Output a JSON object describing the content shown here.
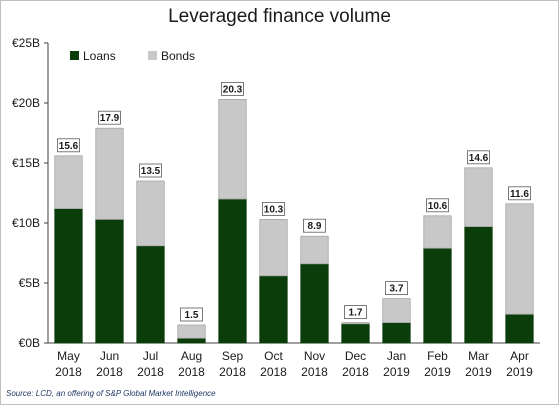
{
  "chart_data": {
    "type": "bar",
    "stacked": true,
    "title": "Leveraged finance volume",
    "source": "Source: LCD, an offering of S&P Global Market Intelligence",
    "categories": [
      [
        "May",
        "2018"
      ],
      [
        "Jun",
        "2018"
      ],
      [
        "Jul",
        "2018"
      ],
      [
        "Aug",
        "2018"
      ],
      [
        "Sep",
        "2018"
      ],
      [
        "Oct",
        "2018"
      ],
      [
        "Nov",
        "2018"
      ],
      [
        "Dec",
        "2018"
      ],
      [
        "Jan",
        "2019"
      ],
      [
        "Feb",
        "2019"
      ],
      [
        "Mar",
        "2019"
      ],
      [
        "Apr",
        "2019"
      ]
    ],
    "series": [
      {
        "name": "Loans",
        "color": "#0b3d0b",
        "values": [
          11.2,
          10.3,
          8.1,
          0.4,
          12.0,
          5.6,
          6.6,
          1.6,
          1.7,
          7.9,
          9.7,
          2.4
        ]
      },
      {
        "name": "Bonds",
        "color": "#c8c8c8",
        "values": [
          4.4,
          7.6,
          5.4,
          1.1,
          8.3,
          4.7,
          2.3,
          0.1,
          2.0,
          2.7,
          4.9,
          9.2
        ]
      }
    ],
    "totals": [
      "15.6",
      "17.9",
      "13.5",
      "1.5",
      "20.3",
      "10.3",
      "8.9",
      "1.7",
      "3.7",
      "10.6",
      "14.6",
      "11.6"
    ],
    "ylim": [
      0,
      25
    ],
    "yticks": [
      {
        "value": 0,
        "label": "€0B"
      },
      {
        "value": 5,
        "label": "€5B"
      },
      {
        "value": 10,
        "label": "€10B"
      },
      {
        "value": 15,
        "label": "€15B"
      },
      {
        "value": 20,
        "label": "€20B"
      },
      {
        "value": 25,
        "label": "€25B"
      }
    ],
    "legend_position": "top-left",
    "grid": false
  }
}
